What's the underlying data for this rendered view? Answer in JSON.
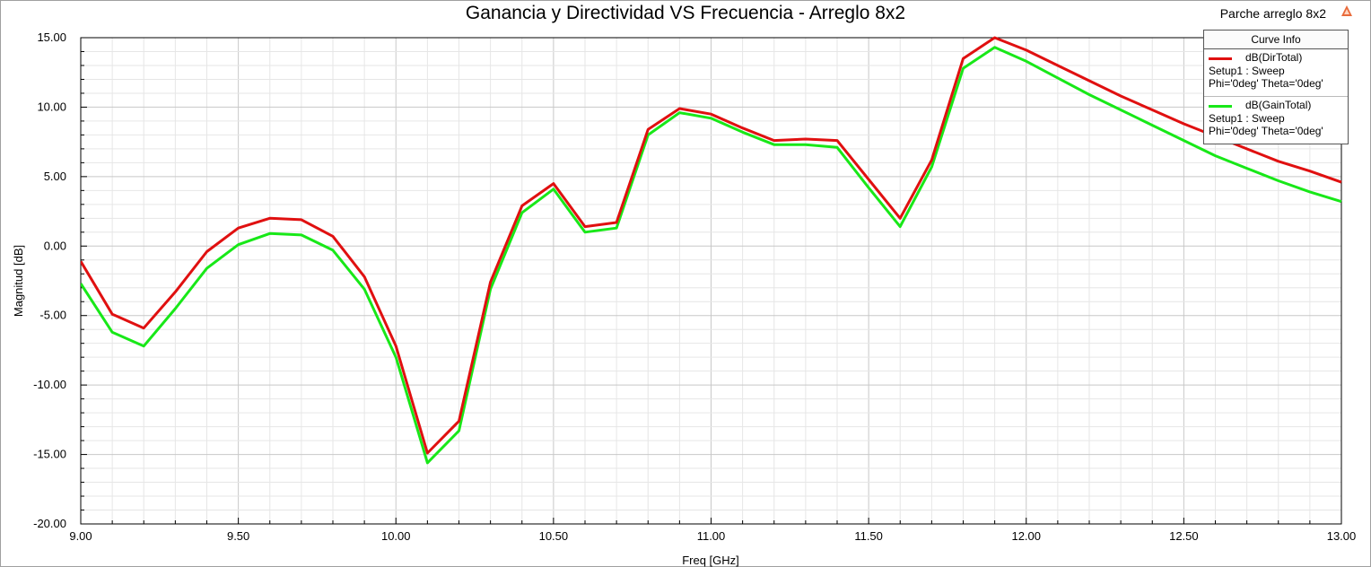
{
  "header": {
    "title": "Ganancia y Directividad VS Frecuencia - Arreglo 8x2",
    "project": "Parche arreglo 8x2"
  },
  "legend": {
    "header": "Curve Info",
    "entries": [
      {
        "name": "dB(DirTotal)",
        "line2": "Setup1 : Sweep",
        "line3": "Phi='0deg' Theta='0deg'",
        "color": "#e01010"
      },
      {
        "name": "dB(GainTotal)",
        "line2": "Setup1 : Sweep",
        "line3": "Phi='0deg' Theta='0deg'",
        "color": "#18e818"
      }
    ]
  },
  "chart_data": {
    "type": "line",
    "title": "Ganancia y Directividad VS Frecuencia - Arreglo 8x2",
    "xlabel": "Freq [GHz]",
    "ylabel": "Magnitud [dB]",
    "xlim": [
      9.0,
      13.0
    ],
    "ylim": [
      -20.0,
      15.0
    ],
    "x_ticks": [
      "9.00",
      "9.50",
      "10.00",
      "10.50",
      "11.00",
      "11.50",
      "12.00",
      "12.50",
      "13.00"
    ],
    "x_tick_values": [
      9.0,
      9.5,
      10.0,
      10.5,
      11.0,
      11.5,
      12.0,
      12.5,
      13.0
    ],
    "y_ticks": [
      "15.00",
      "10.00",
      "5.00",
      "0.00",
      "-5.00",
      "-10.00",
      "-15.00",
      "-20.00"
    ],
    "y_tick_values": [
      15,
      10,
      5,
      0,
      -5,
      -10,
      -15,
      -20
    ],
    "grid": true,
    "legend_position": "top-right",
    "x": [
      9.0,
      9.1,
      9.2,
      9.3,
      9.4,
      9.5,
      9.6,
      9.7,
      9.8,
      9.9,
      10.0,
      10.1,
      10.2,
      10.3,
      10.4,
      10.5,
      10.6,
      10.7,
      10.8,
      10.9,
      11.0,
      11.1,
      11.2,
      11.3,
      11.4,
      11.5,
      11.6,
      11.7,
      11.8,
      11.9,
      12.0,
      12.1,
      12.2,
      12.3,
      12.4,
      12.5,
      12.6,
      12.7,
      12.8,
      12.9,
      13.0
    ],
    "series": [
      {
        "name": "dB(DirTotal)",
        "color": "#e01010",
        "values": [
          -1.1,
          -4.9,
          -5.9,
          -3.3,
          -0.4,
          1.3,
          2.0,
          1.9,
          0.7,
          -2.2,
          -7.2,
          -14.9,
          -12.6,
          -2.6,
          2.9,
          4.5,
          1.4,
          1.7,
          8.4,
          9.9,
          9.5,
          8.5,
          7.6,
          7.7,
          7.6,
          4.8,
          2.0,
          6.2,
          13.5,
          15.0,
          14.1,
          13.0,
          11.9,
          10.8,
          9.8,
          8.8,
          7.9,
          7.0,
          6.1,
          5.4,
          4.6
        ]
      },
      {
        "name": "dB(GainTotal)",
        "color": "#18e818",
        "values": [
          -2.7,
          -6.2,
          -7.2,
          -4.5,
          -1.6,
          0.1,
          0.9,
          0.8,
          -0.3,
          -3.1,
          -8.0,
          -15.6,
          -13.3,
          -3.1,
          2.4,
          4.1,
          1.0,
          1.3,
          8.0,
          9.6,
          9.2,
          8.2,
          7.3,
          7.3,
          7.1,
          4.2,
          1.4,
          5.7,
          12.8,
          14.3,
          13.3,
          12.1,
          10.9,
          9.8,
          8.7,
          7.6,
          6.5,
          5.6,
          4.7,
          3.9,
          3.2
        ]
      }
    ]
  }
}
